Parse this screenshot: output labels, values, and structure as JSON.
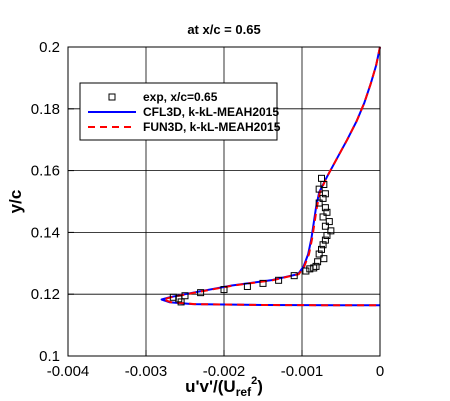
{
  "chart_data": {
    "type": "line",
    "title": "at x/c = 0.65",
    "xlabel": "u'v'/(U",
    "xlabel_sub": "ref",
    "xlabel_sup": "2",
    "xlabel_close": ")",
    "ylabel": "y/c",
    "xlim": [
      -0.004,
      0
    ],
    "ylim": [
      0.1,
      0.2
    ],
    "xticks": [
      -0.004,
      -0.003,
      -0.002,
      -0.001,
      0
    ],
    "xtick_labels": [
      "-0.004",
      "-0.003",
      "-0.002",
      "-0.001",
      "0"
    ],
    "yticks": [
      0.1,
      0.12,
      0.14,
      0.16,
      0.18,
      0.2
    ],
    "ytick_labels": [
      "0.1",
      "0.12",
      "0.14",
      "0.16",
      "0.18",
      "0.2"
    ],
    "grid": true,
    "legend_position": "top-left",
    "series": [
      {
        "name": "exp, x/c=0.65",
        "style": "markers",
        "marker": "square",
        "color": "#000000",
        "points": [
          [
            -0.00075,
            0.1575
          ],
          [
            -0.00072,
            0.1555
          ],
          [
            -0.00078,
            0.154
          ],
          [
            -0.0007,
            0.1525
          ],
          [
            -0.00073,
            0.151
          ],
          [
            -0.00078,
            0.1495
          ],
          [
            -0.0007,
            0.148
          ],
          [
            -0.00068,
            0.1465
          ],
          [
            -0.00073,
            0.145
          ],
          [
            -0.00065,
            0.1435
          ],
          [
            -0.0007,
            0.142
          ],
          [
            -0.00063,
            0.1405
          ],
          [
            -0.00068,
            0.139
          ],
          [
            -0.0007,
            0.1375
          ],
          [
            -0.00073,
            0.136
          ],
          [
            -0.00075,
            0.1345
          ],
          [
            -0.00078,
            0.133
          ],
          [
            -0.00072,
            0.1315
          ],
          [
            -0.0008,
            0.1305
          ],
          [
            -0.00082,
            0.129
          ],
          [
            -0.00085,
            0.1285
          ],
          [
            -0.0009,
            0.1282
          ],
          [
            -0.00095,
            0.1275
          ],
          [
            -0.0011,
            0.126
          ],
          [
            -0.0013,
            0.1245
          ],
          [
            -0.0015,
            0.1235
          ],
          [
            -0.0017,
            0.1225
          ],
          [
            -0.002,
            0.1215
          ],
          [
            -0.0023,
            0.1205
          ],
          [
            -0.0025,
            0.1195
          ],
          [
            -0.00265,
            0.119
          ],
          [
            -0.00258,
            0.1185
          ],
          [
            -0.00255,
            0.1175
          ]
        ]
      },
      {
        "name": "CFL3D, k-kL-MEAH2015",
        "style": "solid",
        "color": "#0000ff",
        "points": [
          [
            0,
            0.2
          ],
          [
            -5e-05,
            0.194
          ],
          [
            -0.00012,
            0.188
          ],
          [
            -0.0002,
            0.182
          ],
          [
            -0.0003,
            0.176
          ],
          [
            -0.00042,
            0.17
          ],
          [
            -0.00055,
            0.164
          ],
          [
            -0.00068,
            0.158
          ],
          [
            -0.00078,
            0.153
          ],
          [
            -0.00082,
            0.148
          ],
          [
            -0.00085,
            0.143
          ],
          [
            -0.00088,
            0.138
          ],
          [
            -0.00092,
            0.133
          ],
          [
            -0.00098,
            0.129
          ],
          [
            -0.00105,
            0.1265
          ],
          [
            -0.0014,
            0.1245
          ],
          [
            -0.0019,
            0.1228
          ],
          [
            -0.0024,
            0.1205
          ],
          [
            -0.0027,
            0.119
          ],
          [
            -0.0028,
            0.1183
          ],
          [
            -0.0027,
            0.1174
          ],
          [
            -0.0024,
            0.1168
          ],
          [
            -0.0015,
            0.1165
          ],
          [
            -0.0005,
            0.1164
          ],
          [
            0,
            0.1164
          ]
        ]
      },
      {
        "name": "FUN3D, k-kL-MEAH2015",
        "style": "dashed",
        "color": "#ff0000",
        "points": [
          [
            0,
            0.2
          ],
          [
            -5e-05,
            0.194
          ],
          [
            -0.00012,
            0.188
          ],
          [
            -0.0002,
            0.182
          ],
          [
            -0.0003,
            0.176
          ],
          [
            -0.00042,
            0.17
          ],
          [
            -0.00055,
            0.164
          ],
          [
            -0.00068,
            0.158
          ],
          [
            -0.00077,
            0.153
          ],
          [
            -0.00081,
            0.148
          ],
          [
            -0.00084,
            0.143
          ],
          [
            -0.00087,
            0.138
          ],
          [
            -0.00091,
            0.133
          ],
          [
            -0.00097,
            0.129
          ],
          [
            -0.00104,
            0.1265
          ],
          [
            -0.00138,
            0.1245
          ],
          [
            -0.00188,
            0.1228
          ],
          [
            -0.00238,
            0.1205
          ],
          [
            -0.00268,
            0.119
          ],
          [
            -0.00278,
            0.1183
          ],
          [
            -0.00268,
            0.1174
          ],
          [
            -0.00238,
            0.1168
          ],
          [
            -0.0015,
            0.1165
          ],
          [
            -0.0005,
            0.1164
          ],
          [
            0,
            0.1164
          ]
        ]
      }
    ]
  }
}
